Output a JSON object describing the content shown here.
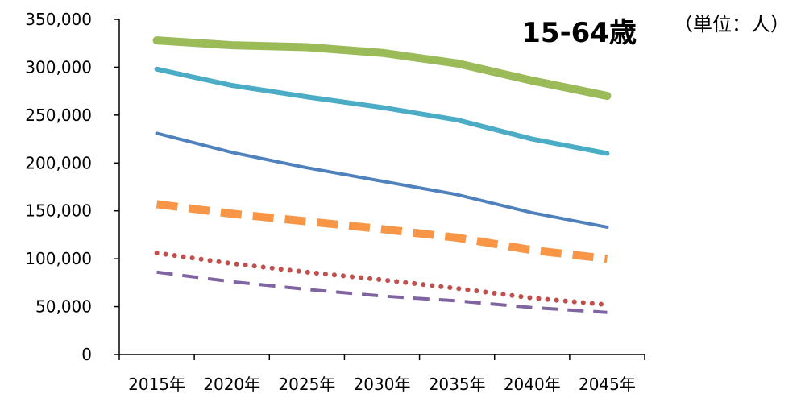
{
  "chart_data": {
    "type": "line",
    "title": "15-64歳",
    "unit_label": "（単位：人）",
    "categories": [
      "2015年",
      "2020年",
      "2025年",
      "2030年",
      "2035年",
      "2040年",
      "2045年"
    ],
    "ylim": [
      0,
      350000
    ],
    "yticks": [
      0,
      50000,
      100000,
      150000,
      200000,
      250000,
      300000,
      350000
    ],
    "ytick_labels": [
      "0",
      "50,000",
      "100,000",
      "150,000",
      "200,000",
      "250,000",
      "300,000",
      "350,000"
    ],
    "grid": false,
    "legend": "none",
    "series": [
      {
        "values": [
          328000,
          323000,
          321000,
          315000,
          304000,
          286000,
          270000
        ],
        "color": "#9BBB59",
        "style": "solid",
        "width": "thick"
      },
      {
        "values": [
          298000,
          281000,
          269000,
          258000,
          245000,
          225000,
          210000
        ],
        "color": "#4BACC6",
        "style": "solid",
        "width": "medium"
      },
      {
        "values": [
          231000,
          211000,
          195000,
          181000,
          167000,
          148000,
          133000
        ],
        "color": "#4F81BD",
        "style": "solid",
        "width": "thin"
      },
      {
        "values": [
          157000,
          147000,
          139000,
          131000,
          122000,
          109000,
          100000
        ],
        "color": "#F79646",
        "style": "dash",
        "width": "thick"
      },
      {
        "values": [
          106000,
          95000,
          86000,
          78000,
          69000,
          59000,
          52000
        ],
        "color": "#C0504D",
        "style": "dot",
        "width": "thin"
      },
      {
        "values": [
          86000,
          76000,
          68000,
          61000,
          56000,
          49000,
          44000
        ],
        "color": "#8064A2",
        "style": "dash",
        "width": "thin"
      }
    ]
  }
}
